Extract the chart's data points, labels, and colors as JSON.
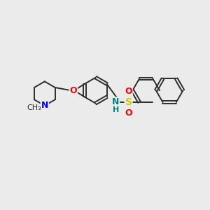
{
  "bg_color": "#ebebeb",
  "bond_color": "#2d2d2d",
  "N_color": "#0000ff",
  "O_color": "#ff0000",
  "S_color": "#cccc00",
  "NH_color": "#008080",
  "line_width": 1.4,
  "figsize": [
    3.0,
    3.0
  ],
  "dpi": 100,
  "xlim": [
    0,
    10
  ],
  "ylim": [
    0,
    10
  ]
}
